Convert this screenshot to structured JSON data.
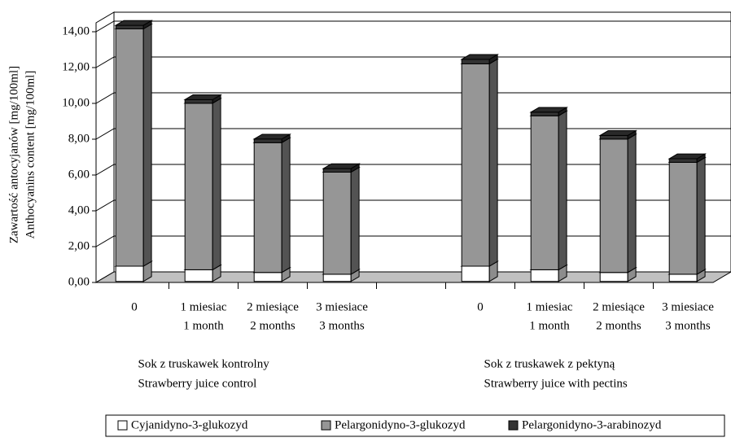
{
  "chart_data": {
    "type": "bar3d_stacked",
    "ylabel": [
      "Zawartość antocyjanów [mg/100ml]",
      "Anthocyanins content [mg/100ml]"
    ],
    "categories": [
      [
        "0"
      ],
      [
        "1 miesiac",
        "1 month"
      ],
      [
        "2 miesiące",
        "2 months"
      ],
      [
        "3 miesiace",
        "3 months"
      ],
      null,
      [
        "0"
      ],
      [
        "1 miesiac",
        "1 month"
      ],
      [
        "2 miesiące",
        "2 months"
      ],
      [
        "3 miesiace",
        "3 months"
      ]
    ],
    "group_labels": [
      [
        "Sok  z  truskawek  kontrolny",
        "Strawberry juice control"
      ],
      [
        "Sok  z  truskawek  z  pektyną",
        "Strawberry juice with pectins"
      ]
    ],
    "series": [
      {
        "name": "Cyjanidyno-3-glukozyd",
        "color": "#ffffff",
        "values": [
          0.85,
          0.65,
          0.5,
          0.4,
          null,
          0.85,
          0.65,
          0.5,
          0.4
        ]
      },
      {
        "name": "Pelargonidyno-3-glukozyd",
        "color": "#969696",
        "values": [
          13.25,
          9.3,
          7.25,
          5.7,
          null,
          11.3,
          8.6,
          7.45,
          6.25
        ]
      },
      {
        "name": "Pelargonidyno-3-arabinozyd",
        "color": "#333333",
        "values": [
          0.2,
          0.2,
          0.2,
          0.2,
          null,
          0.25,
          0.2,
          0.2,
          0.2
        ]
      }
    ],
    "ylim": [
      0,
      14.5
    ],
    "yticks": [
      {
        "value": 0,
        "label": "0,00"
      },
      {
        "value": 2,
        "label": "2,00"
      },
      {
        "value": 4,
        "label": "4,00"
      },
      {
        "value": 6,
        "label": "6,00"
      },
      {
        "value": 8,
        "label": "8,00"
      },
      {
        "value": 10,
        "label": "10,00"
      },
      {
        "value": 12,
        "label": "12,00"
      },
      {
        "value": 14,
        "label": "14,00"
      }
    ],
    "grid": true,
    "legend": "bottom"
  }
}
